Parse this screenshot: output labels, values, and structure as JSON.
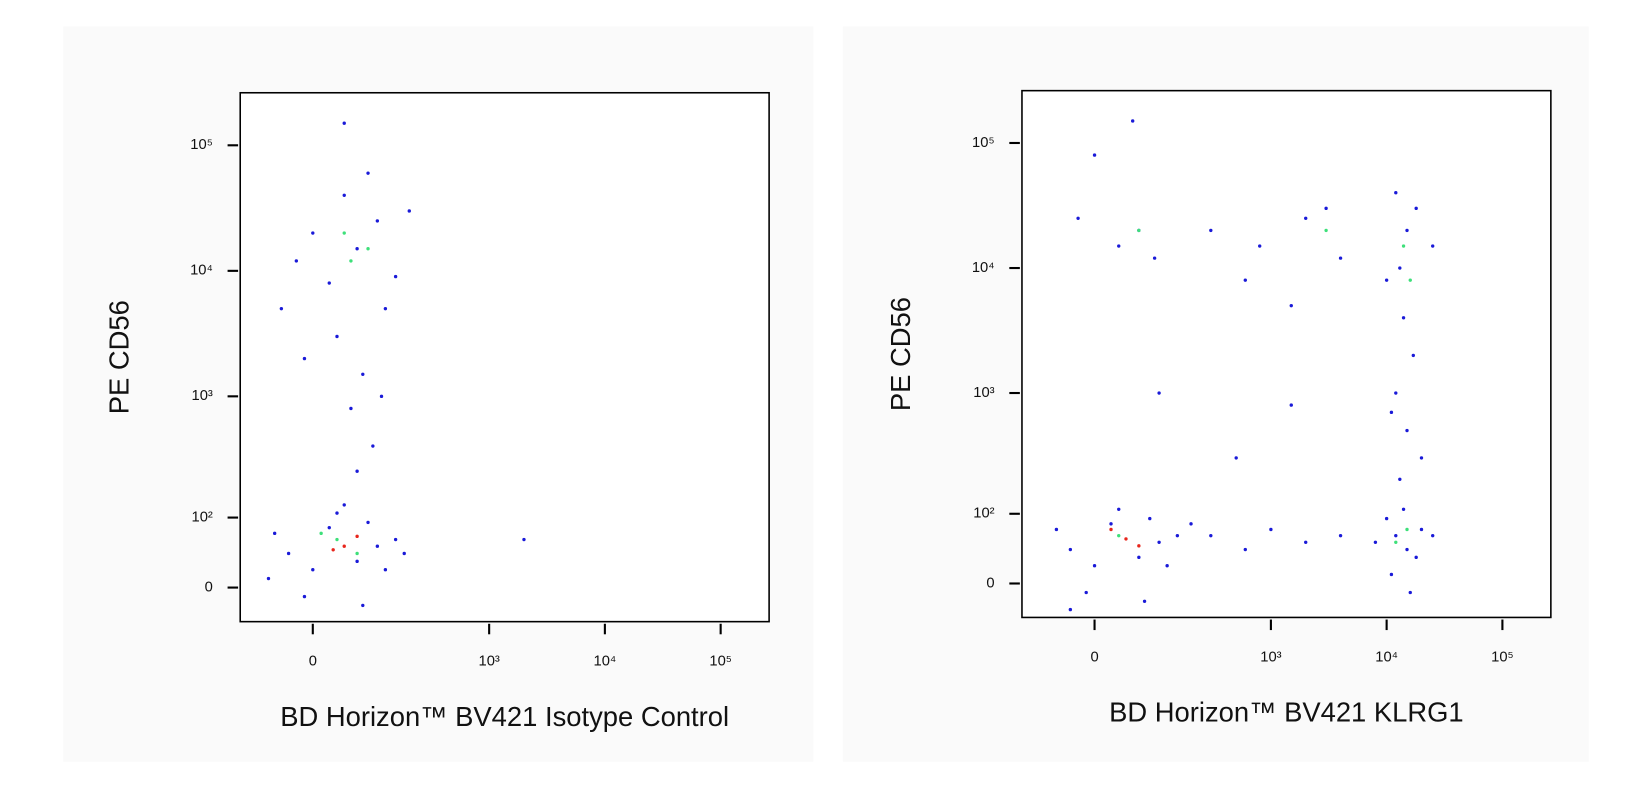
{
  "chart_data": [
    {
      "type": "scatter",
      "xlabel": "BD Horizon™ BV421 Isotype Control",
      "ylabel": "PE CD56",
      "xscale": "logicle",
      "yscale": "logicle",
      "xlim": [
        -120,
        262144
      ],
      "ylim": [
        -40,
        262144
      ],
      "xticks": [
        0,
        {
          "value": 1000,
          "label": "10³"
        },
        {
          "value": 10000,
          "label": "10⁴"
        },
        {
          "value": 100000,
          "label": "10⁵"
        }
      ],
      "yticks": [
        0,
        {
          "value": 100,
          "label": "10²"
        },
        {
          "value": 1000,
          "label": "10³"
        },
        {
          "value": 10000,
          "label": "10⁴"
        },
        {
          "value": 100000,
          "label": "10⁵"
        }
      ],
      "series": [
        {
          "color": "#1a1ad8",
          "x": [
            -30,
            0,
            20,
            60,
            80,
            100,
            -50,
            120,
            30,
            150,
            -10,
            70,
            40,
            180,
            -60,
            20,
            60,
            100,
            -20,
            150,
            40,
            80,
            0,
            120,
            30,
            70,
            50,
            90,
            -10,
            110,
            60,
            40,
            200,
            -40,
            2000
          ],
          "y": [
            40,
            20,
            80,
            30,
            90,
            50,
            70,
            20,
            110,
            60,
            -10,
            -20,
            130,
            40,
            10,
            8000,
            15000,
            25000,
            12000,
            9000,
            40000,
            60000,
            20000,
            5000,
            3000,
            1500,
            800,
            400,
            2000,
            1000,
            250,
            150000,
            30000,
            5000,
            60
          ]
        },
        {
          "color": "#3ee07a",
          "x": [
            30,
            60,
            10,
            80,
            40,
            50
          ],
          "y": [
            60,
            40,
            70,
            15000,
            20000,
            12000
          ]
        },
        {
          "color": "#e8261c",
          "x": [
            40,
            60,
            25
          ],
          "y": [
            50,
            65,
            45
          ]
        }
      ]
    },
    {
      "type": "scatter",
      "xlabel": "BD Horizon™ BV421 KLRG1",
      "ylabel": "PE CD56",
      "xscale": "logicle",
      "yscale": "logicle",
      "xlim": [
        -120,
        262144
      ],
      "ylim": [
        -40,
        262144
      ],
      "xticks": [
        0,
        {
          "value": 1000,
          "label": "10³"
        },
        {
          "value": 10000,
          "label": "10⁴"
        },
        {
          "value": 100000,
          "label": "10⁵"
        }
      ],
      "yticks": [
        0,
        {
          "value": 100,
          "label": "10²"
        },
        {
          "value": 1000,
          "label": "10³"
        },
        {
          "value": 10000,
          "label": "10⁴"
        },
        {
          "value": 100000,
          "label": "10⁵"
        }
      ],
      "series": [
        {
          "color": "#1a1ad8",
          "x": [
            -30,
            0,
            20,
            60,
            80,
            100,
            -50,
            120,
            30,
            150,
            -10,
            70,
            12000,
            15000,
            10000,
            18000,
            20000,
            8000,
            14000,
            25000,
            11000,
            16000,
            300,
            600,
            1000,
            2000,
            4000,
            200,
            13000,
            15000,
            12000,
            17000,
            14000,
            20000,
            11000,
            13000,
            15000,
            18000,
            10000,
            25000,
            12000,
            30,
            60,
            -20,
            90,
            0,
            50,
            300,
            800,
            2000,
            4000,
            600,
            1500,
            3000,
            1500,
            500,
            100,
            -30
          ],
          "y": [
            40,
            20,
            80,
            30,
            90,
            50,
            70,
            20,
            110,
            60,
            -10,
            -20,
            60,
            40,
            90,
            30,
            70,
            50,
            110,
            60,
            10,
            -10,
            60,
            40,
            70,
            50,
            60,
            80,
            200,
            500,
            1000,
            2000,
            4000,
            300,
            700,
            10000,
            20000,
            30000,
            8000,
            15000,
            40000,
            15000,
            20000,
            25000,
            12000,
            80000,
            150000,
            20000,
            15000,
            25000,
            12000,
            8000,
            5000,
            30000,
            800,
            300,
            1000,
            -30
          ]
        },
        {
          "color": "#3ee07a",
          "x": [
            30,
            12000,
            15000,
            14000,
            16000,
            3000,
            60
          ],
          "y": [
            60,
            50,
            70,
            15000,
            8000,
            20000,
            20000
          ]
        },
        {
          "color": "#e8261c",
          "x": [
            40,
            60,
            20
          ],
          "y": [
            55,
            45,
            70
          ]
        }
      ]
    }
  ]
}
